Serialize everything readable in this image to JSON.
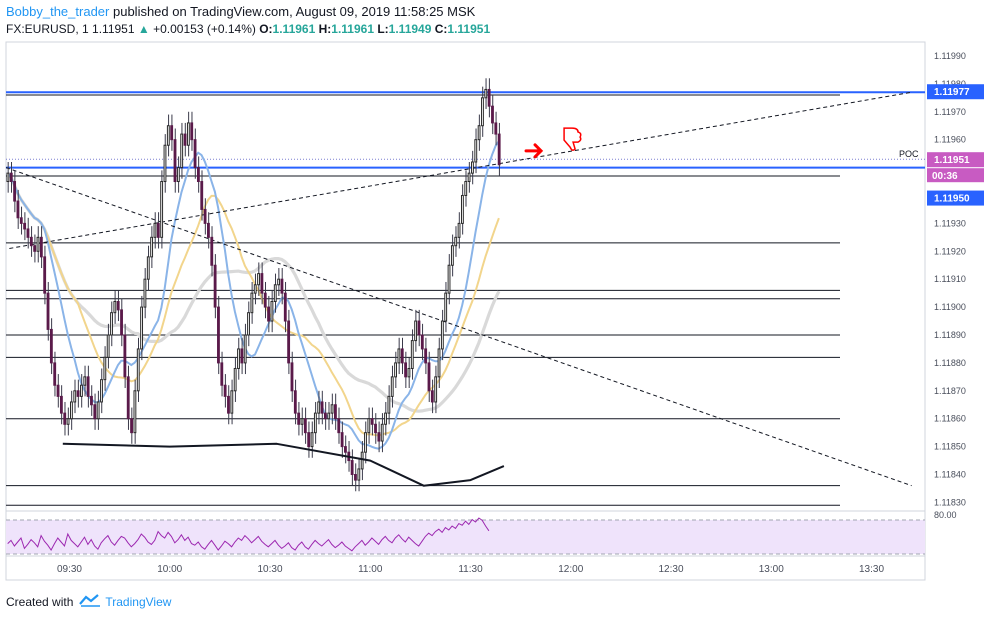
{
  "header": {
    "author": "Bobby_the_trader",
    "published_text": "published on TradingView.com, August 09, 2019 11:58:25 MSK",
    "symbol": "FX:EURUSD, 1",
    "last": "1.11951",
    "change": "+0.00153 (+0.14%)",
    "o_label": "O:",
    "o": "1.11961",
    "h_label": "H:",
    "h": "1.11961",
    "l_label": "L:",
    "l": "1.11949",
    "c_label": "C:",
    "c": "1.11951"
  },
  "footer": {
    "created_with": "Created with",
    "brand": "TradingView"
  },
  "colors": {
    "up": "#2a2a2a",
    "down": "#5a1a4a",
    "ma_fast": "#8ab4e8",
    "ma_mid": "#f2d58c",
    "ma_slow": "#d9d9d9",
    "blue_level": "#2962ff",
    "rsi_bg": "#efe3fb",
    "rsi_line": "#9c27b0",
    "arrow": "#ff0000",
    "price_tag": "#2962ff",
    "countdown_tag": "#c85bc2"
  },
  "chart_data": {
    "type": "candlestick",
    "instrument": "FX:EURUSD, 1",
    "ylim": [
      1.11828,
      1.11995
    ],
    "y_ticks": [
      "1.11990",
      "1.11980",
      "1.11970",
      "1.11960",
      "1.11930",
      "1.11920",
      "1.11910",
      "1.11900",
      "1.11890",
      "1.11880",
      "1.11870",
      "1.11860",
      "1.11850",
      "1.11840",
      "1.11830"
    ],
    "x_ticks": [
      "09:30",
      "10:00",
      "10:30",
      "11:00",
      "11:30",
      "12:00",
      "12:30",
      "13:00",
      "13:30"
    ],
    "x_range_minutes": [
      551,
      826
    ],
    "x_tick_minutes": [
      570,
      600,
      630,
      660,
      690,
      720,
      750,
      780,
      810
    ],
    "candle_start_minute": 551,
    "candle_close": [
      1.11948,
      1.11945,
      1.11938,
      1.11932,
      1.1193,
      1.11928,
      1.11925,
      1.11922,
      1.1192,
      1.11925,
      1.11918,
      1.11905,
      1.11892,
      1.1188,
      1.11872,
      1.11868,
      1.11862,
      1.11858,
      1.1186,
      1.11866,
      1.1187,
      1.11868,
      1.11872,
      1.11875,
      1.11868,
      1.11865,
      1.1186,
      1.11866,
      1.11874,
      1.11882,
      1.1189,
      1.11898,
      1.11902,
      1.11899,
      1.1189,
      1.11875,
      1.1186,
      1.11855,
      1.1187,
      1.11885,
      1.119,
      1.1191,
      1.11918,
      1.11925,
      1.1193,
      1.11925,
      1.11945,
      1.11958,
      1.11965,
      1.1196,
      1.11945,
      1.1195,
      1.11962,
      1.11958,
      1.11966,
      1.1196,
      1.1195,
      1.11945,
      1.11935,
      1.1193,
      1.11925,
      1.11915,
      1.119,
      1.1188,
      1.11872,
      1.11868,
      1.11862,
      1.1187,
      1.11878,
      1.11885,
      1.1188,
      1.1189,
      1.11898,
      1.11905,
      1.11908,
      1.11912,
      1.11905,
      1.119,
      1.11895,
      1.11902,
      1.11908,
      1.1191,
      1.11905,
      1.11895,
      1.1188,
      1.1187,
      1.11862,
      1.11858,
      1.1186,
      1.11855,
      1.1185,
      1.11855,
      1.11862,
      1.11866,
      1.11862,
      1.1186,
      1.11862,
      1.11865,
      1.1186,
      1.11855,
      1.1185,
      1.11848,
      1.11845,
      1.1184,
      1.11838,
      1.11842,
      1.11848,
      1.11855,
      1.1186,
      1.11858,
      1.11855,
      1.11852,
      1.11858,
      1.11862,
      1.11868,
      1.11875,
      1.1188,
      1.11885,
      1.1188,
      1.11875,
      1.11878,
      1.11888,
      1.11895,
      1.1189,
      1.11885,
      1.1188,
      1.1187,
      1.11866,
      1.11875,
      1.11885,
      1.11895,
      1.11905,
      1.11915,
      1.11922,
      1.11925,
      1.1193,
      1.1194,
      1.11945,
      1.11948,
      1.11952,
      1.1196,
      1.11965,
      1.11975,
      1.11978,
      1.11972,
      1.11966,
      1.11962,
      1.11951
    ],
    "candle_open": 1.11945,
    "poc": "POC",
    "resistance_levels": [
      1.11977,
      1.1195
    ],
    "horizontal_levels": [
      1.11976,
      1.11947,
      1.11923,
      1.11906,
      1.11903,
      1.1189,
      1.11882,
      1.1186,
      1.11836,
      1.11829
    ],
    "trendlines": [
      {
        "style": "dashed",
        "from": [
          552,
          1.11921
        ],
        "to": [
          822,
          1.11977
        ]
      },
      {
        "style": "dashed",
        "from": [
          551,
          1.1195
        ],
        "to": [
          822,
          1.11836
        ]
      }
    ],
    "price_labels": [
      "1.11977",
      "1.11951",
      "00:36",
      "1.11950"
    ],
    "rsi": {
      "ticks": [
        "80.00"
      ],
      "values": [
        48,
        52,
        45,
        50,
        55,
        42,
        47,
        53,
        49,
        44,
        58,
        51,
        46,
        40,
        48,
        55,
        50,
        45,
        60,
        52,
        48,
        44,
        50,
        56,
        47,
        53,
        45,
        41,
        49,
        54,
        58,
        50,
        46,
        52,
        57,
        55,
        49,
        44,
        48,
        53,
        60,
        56,
        50,
        47,
        52,
        63,
        58,
        55,
        62,
        57,
        49,
        53,
        59,
        52,
        56,
        48,
        46,
        50,
        44,
        41,
        47,
        52,
        46,
        40,
        45,
        51,
        48,
        44,
        50,
        55,
        52,
        58,
        54,
        49,
        53,
        57,
        51,
        47,
        44,
        48,
        52,
        46,
        42,
        45,
        49,
        43,
        40,
        46,
        50,
        44,
        41,
        47,
        52,
        48,
        45,
        49,
        53,
        47,
        43,
        46,
        50,
        45,
        42,
        39,
        44,
        48,
        52,
        46,
        50,
        55,
        51,
        47,
        53,
        57,
        52,
        49,
        55,
        59,
        54,
        50,
        56,
        52,
        48,
        45,
        51,
        57,
        61,
        58,
        63,
        66,
        62,
        68,
        65,
        70,
        67,
        73,
        71,
        76,
        72,
        78,
        75,
        80,
        77,
        70,
        64
      ]
    }
  }
}
